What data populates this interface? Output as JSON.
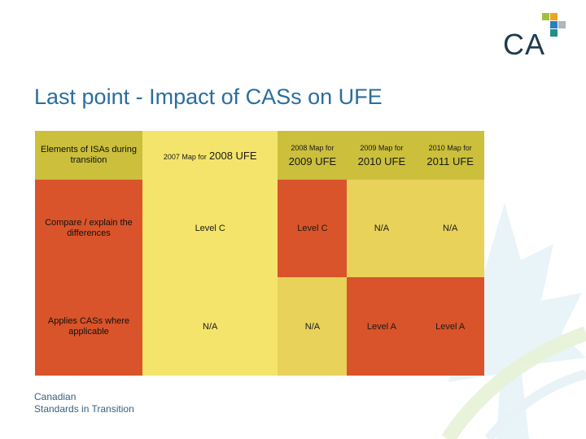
{
  "slide": {
    "title": "Last point - Impact of CASs on UFE",
    "logo_text": "CA",
    "footer_line1": "Canadian",
    "footer_line2": "Standards in Transition"
  },
  "colors": {
    "title": "#2a6e9e",
    "orange": "#d9542a",
    "light_yellow": "#f5e46b",
    "yellow": "#e8d25a",
    "olive": "#cbbf3c"
  },
  "table": {
    "header_label": "Elements of ISAs during transition",
    "columns": [
      {
        "small": "2007 Map for",
        "big": "2008 UFE"
      },
      {
        "small": "2008 Map for",
        "big": "2009 UFE"
      },
      {
        "small": "2009 Map for",
        "big": "2010 UFE"
      },
      {
        "small": "2010 Map for",
        "big": "2011 UFE"
      }
    ],
    "rows": [
      {
        "label": "Compare / explain the differences",
        "cells": [
          "Level C",
          "Level C",
          "N/A",
          "N/A"
        ]
      },
      {
        "label": "Applies CASs where applicable",
        "cells": [
          "N/A",
          "N/A",
          "Level A",
          "Level A"
        ]
      }
    ]
  }
}
